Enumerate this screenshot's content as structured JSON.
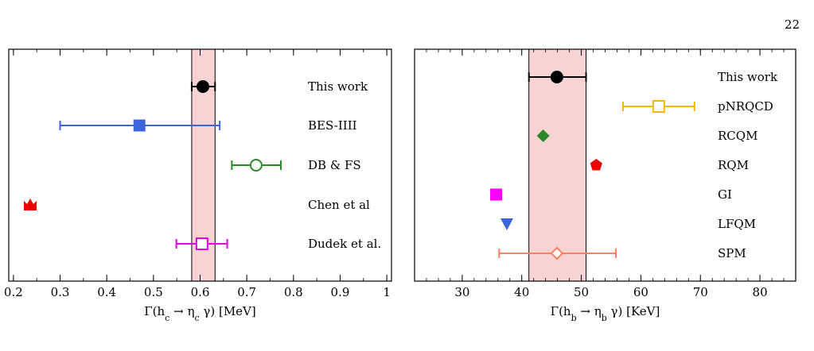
{
  "page_number": "22",
  "chart_data": [
    {
      "type": "scatter",
      "xlabel": "Γ(h_c → η_c γ) [MeV]",
      "xlim": [
        0.19,
        1.01
      ],
      "ticks": [
        0.2,
        0.3,
        0.4,
        0.5,
        0.6,
        0.7,
        0.8,
        0.9,
        1
      ],
      "tick_labels": [
        "0.2",
        "0.3",
        "0.4",
        "0.5",
        "0.6",
        "0.7",
        "0.8",
        "0.9",
        "1"
      ],
      "minor_step": 0.05,
      "band": [
        0.582,
        0.632
      ],
      "band_color": "#f8d3d3",
      "points": [
        {
          "label": "This work",
          "x": 0.606,
          "err": [
            0.582,
            0.632
          ],
          "marker": "circle-filled",
          "color": "#000000"
        },
        {
          "label": "BES-IIII",
          "x": 0.47,
          "err": [
            0.3,
            0.642
          ],
          "marker": "square-filled",
          "color": "#3c64dc"
        },
        {
          "label": "DB & FS",
          "x": 0.72,
          "err": [
            0.668,
            0.773
          ],
          "marker": "circle-open",
          "color": "#2a8a2a"
        },
        {
          "label": "Chen et al",
          "x": 0.236,
          "err": null,
          "marker": "crown-filled",
          "color": "#ee0000"
        },
        {
          "label": "Dudek et al.",
          "x": 0.604,
          "err": [
            0.549,
            0.658
          ],
          "marker": "square-open",
          "color": "#e000e0"
        }
      ]
    },
    {
      "type": "scatter",
      "xlabel": "Γ(h_b → η_b γ) [KeV]",
      "xlim": [
        22,
        86
      ],
      "ticks": [
        30,
        40,
        50,
        60,
        70,
        80
      ],
      "tick_labels": [
        "30",
        "40",
        "50",
        "60",
        "70",
        "80"
      ],
      "minor_step": 2,
      "band": [
        41.2,
        50.8
      ],
      "band_color": "#f8d3d3",
      "points": [
        {
          "label": "This work",
          "x": 45.9,
          "err": [
            41.2,
            50.8
          ],
          "marker": "circle-filled",
          "color": "#000000"
        },
        {
          "label": "pNRQCD",
          "x": 63.0,
          "err": [
            57.0,
            69.0
          ],
          "marker": "square-open",
          "color": "#f5b800"
        },
        {
          "label": "RCQM",
          "x": 43.6,
          "err": null,
          "marker": "diamond-filled",
          "color": "#2a8a2a"
        },
        {
          "label": "RQM",
          "x": 52.5,
          "err": null,
          "marker": "pentagon-filled",
          "color": "#ee0000"
        },
        {
          "label": "GI",
          "x": 35.7,
          "err": null,
          "marker": "square-filled",
          "color": "#ff00ff"
        },
        {
          "label": "LFQM",
          "x": 37.5,
          "err": null,
          "marker": "triangle-down-filled",
          "color": "#3c64dc"
        },
        {
          "label": "SPM",
          "x": 45.9,
          "err": [
            36.2,
            55.8
          ],
          "marker": "diamond-open",
          "color": "#ff8060"
        }
      ]
    }
  ]
}
